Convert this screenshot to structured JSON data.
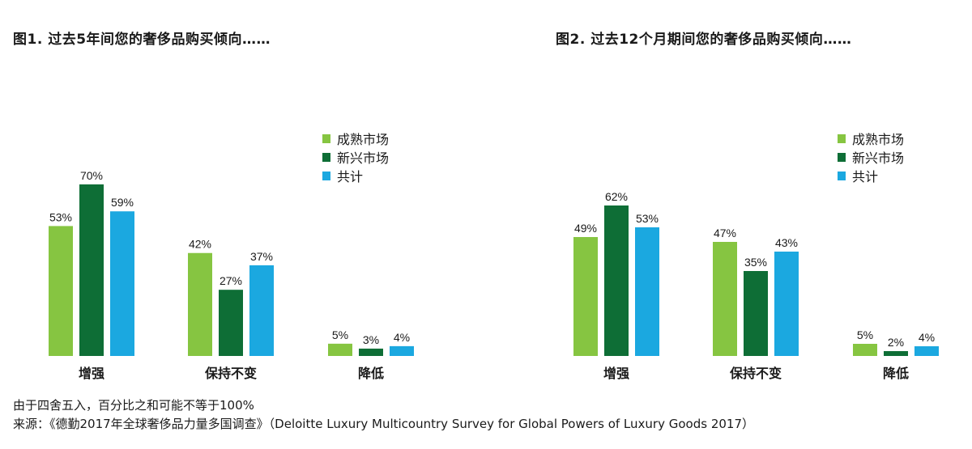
{
  "colors": {
    "mature": "#86c541",
    "emerging": "#0e6e36",
    "total": "#1ba8e0"
  },
  "chart_data": [
    {
      "type": "bar",
      "title": "图1. 过去5年间您的奢侈品购买倾向……",
      "categories": [
        "增强",
        "保持不变",
        "降低"
      ],
      "series": [
        {
          "name": "成熟市场",
          "values": [
            53,
            42,
            5
          ],
          "labels": [
            "53%",
            "42%",
            "5%"
          ]
        },
        {
          "name": "新兴市场",
          "values": [
            70,
            27,
            3
          ],
          "labels": [
            "70%",
            "27%",
            "3%"
          ]
        },
        {
          "name": "共计",
          "values": [
            59,
            37,
            4
          ],
          "labels": [
            "59%",
            "37%",
            "4%"
          ]
        }
      ],
      "ylim": [
        0,
        100
      ],
      "grid": false,
      "legend": "right"
    },
    {
      "type": "bar",
      "title": "图2. 过去12个月期间您的奢侈品购买倾向……",
      "categories": [
        "增强",
        "保持不变",
        "降低"
      ],
      "series": [
        {
          "name": "成熟市场",
          "values": [
            49,
            47,
            5
          ],
          "labels": [
            "49%",
            "47%",
            "5%"
          ]
        },
        {
          "name": "新兴市场",
          "values": [
            62,
            35,
            2
          ],
          "labels": [
            "62%",
            "35%",
            "2%"
          ]
        },
        {
          "name": "共计",
          "values": [
            53,
            43,
            4
          ],
          "labels": [
            "53%",
            "43%",
            "4%"
          ]
        }
      ],
      "ylim": [
        0,
        100
      ],
      "grid": false,
      "legend": "right"
    }
  ],
  "footnotes": {
    "rounding": "由于四舍五入，百分比之和可能不等于100%",
    "source": "来源：《德勤2017年全球奢侈品力量多国调查》（Deloitte Luxury Multicountry Survey for Global Powers of Luxury Goods 2017）"
  }
}
